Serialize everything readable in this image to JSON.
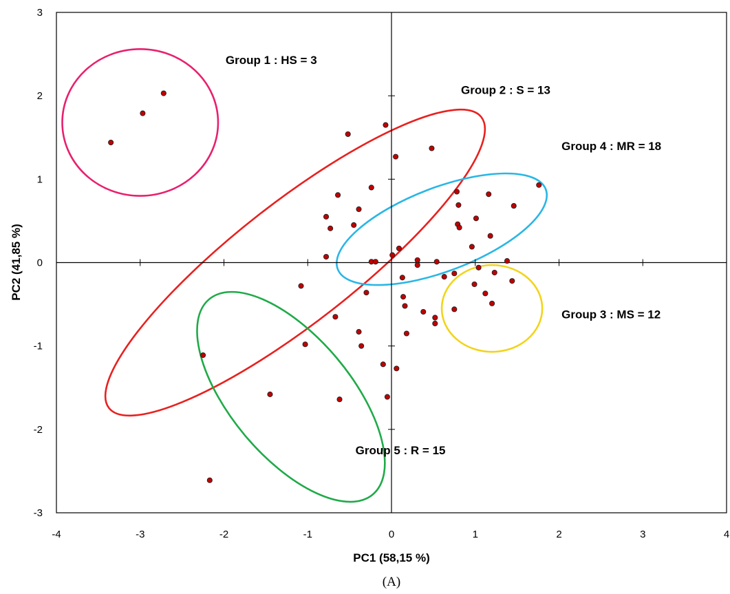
{
  "chart_data": {
    "type": "scatter",
    "title": "",
    "xlabel": "PC1 (58,15 %)",
    "ylabel": "PC2 (41,85 %)",
    "caption": "(A)",
    "xlim": [
      -4,
      4
    ],
    "ylim": [
      -3,
      3
    ],
    "x_ticks": [
      -4,
      -3,
      -2,
      -1,
      0,
      1,
      2,
      3,
      4
    ],
    "y_ticks": [
      -3,
      -2,
      -1,
      0,
      1,
      2,
      3
    ],
    "grid": false,
    "marker_color": "#c00000",
    "points": [
      {
        "x": -3.35,
        "y": 1.44
      },
      {
        "x": -2.97,
        "y": 1.79
      },
      {
        "x": -2.72,
        "y": 2.03
      },
      {
        "x": -0.52,
        "y": 1.54
      },
      {
        "x": -0.07,
        "y": 1.65
      },
      {
        "x": 0.05,
        "y": 1.27
      },
      {
        "x": 0.48,
        "y": 1.37
      },
      {
        "x": -0.64,
        "y": 0.81
      },
      {
        "x": -0.24,
        "y": 0.9
      },
      {
        "x": -0.39,
        "y": 0.64
      },
      {
        "x": -0.78,
        "y": 0.55
      },
      {
        "x": -0.73,
        "y": 0.41
      },
      {
        "x": -0.45,
        "y": 0.45
      },
      {
        "x": -0.78,
        "y": 0.07
      },
      {
        "x": -0.24,
        "y": 0.01
      },
      {
        "x": -0.19,
        "y": 0.01
      },
      {
        "x": 0.01,
        "y": 0.09
      },
      {
        "x": 0.09,
        "y": 0.17
      },
      {
        "x": 0.31,
        "y": 0.03
      },
      {
        "x": 0.31,
        "y": -0.03
      },
      {
        "x": 0.54,
        "y": 0.01
      },
      {
        "x": 0.13,
        "y": -0.18
      },
      {
        "x": 0.78,
        "y": 0.85
      },
      {
        "x": 1.16,
        "y": 0.82
      },
      {
        "x": 1.76,
        "y": 0.93
      },
      {
        "x": 0.8,
        "y": 0.69
      },
      {
        "x": 1.46,
        "y": 0.68
      },
      {
        "x": 1.01,
        "y": 0.53
      },
      {
        "x": 0.79,
        "y": 0.46
      },
      {
        "x": 0.81,
        "y": 0.42
      },
      {
        "x": 1.18,
        "y": 0.32
      },
      {
        "x": 0.96,
        "y": 0.19
      },
      {
        "x": 1.38,
        "y": 0.02
      },
      {
        "x": 1.04,
        "y": -0.06
      },
      {
        "x": 0.75,
        "y": -0.13
      },
      {
        "x": 0.63,
        "y": -0.17
      },
      {
        "x": 1.23,
        "y": -0.12
      },
      {
        "x": 1.44,
        "y": -0.22
      },
      {
        "x": 0.99,
        "y": -0.26
      },
      {
        "x": 1.12,
        "y": -0.37
      },
      {
        "x": 1.2,
        "y": -0.49
      },
      {
        "x": 0.75,
        "y": -0.56
      },
      {
        "x": -1.08,
        "y": -0.28
      },
      {
        "x": -0.3,
        "y": -0.36
      },
      {
        "x": 0.14,
        "y": -0.41
      },
      {
        "x": 0.16,
        "y": -0.52
      },
      {
        "x": 0.38,
        "y": -0.59
      },
      {
        "x": 0.52,
        "y": -0.66
      },
      {
        "x": 0.52,
        "y": -0.73
      },
      {
        "x": -0.67,
        "y": -0.65
      },
      {
        "x": -0.39,
        "y": -0.83
      },
      {
        "x": 0.18,
        "y": -0.85
      },
      {
        "x": -1.03,
        "y": -0.98
      },
      {
        "x": -0.36,
        "y": -1.0
      },
      {
        "x": -0.1,
        "y": -1.22
      },
      {
        "x": 0.06,
        "y": -1.27
      },
      {
        "x": -2.25,
        "y": -1.11
      },
      {
        "x": -1.45,
        "y": -1.58
      },
      {
        "x": -0.62,
        "y": -1.64
      },
      {
        "x": -0.05,
        "y": -1.61
      },
      {
        "x": -2.17,
        "y": -2.61
      }
    ],
    "groups": [
      {
        "label": "Group 1 : HS = 3",
        "color": "#e8206e",
        "cx": -3.0,
        "cy": 1.68,
        "rx": 0.93,
        "ry": 0.88,
        "angle": 0,
        "label_pos": [
          -1.98,
          2.38
        ]
      },
      {
        "label": "Group 2 : S = 13",
        "color": "#e8201e",
        "cx": -1.15,
        "cy": 0.0,
        "rx": 2.82,
        "ry": 0.72,
        "angle": 38,
        "label_pos": [
          0.83,
          2.02
        ]
      },
      {
        "label": "Group 3 : MS = 12",
        "color": "#f2d41a",
        "cx": 1.2,
        "cy": -0.55,
        "rx": 0.6,
        "ry": 0.52,
        "angle": 0,
        "label_pos": [
          2.03,
          -0.67
        ]
      },
      {
        "label": "Group 4 : MR = 18",
        "color": "#29b6e6",
        "cx": 0.6,
        "cy": 0.4,
        "rx": 1.33,
        "ry": 0.5,
        "angle": 21,
        "label_pos": [
          2.03,
          1.35
        ]
      },
      {
        "label": "Group 5 : R = 15",
        "color": "#1faa48",
        "cx": -1.2,
        "cy": -1.61,
        "rx": 1.52,
        "ry": 0.72,
        "angle": -50,
        "label_pos": [
          -0.43,
          -2.3
        ]
      }
    ]
  }
}
